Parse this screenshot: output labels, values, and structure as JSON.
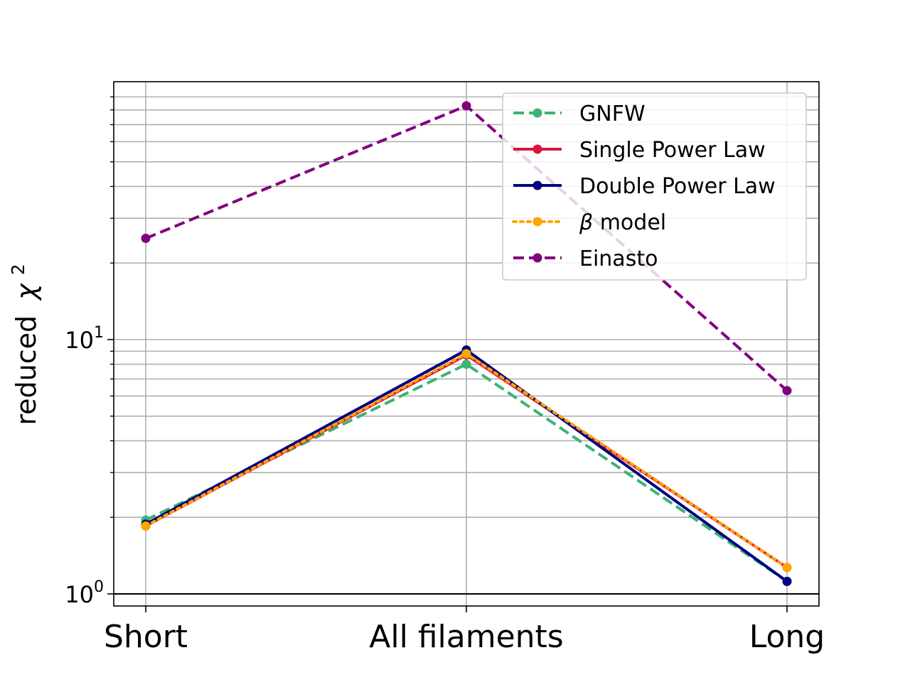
{
  "chart_data": {
    "type": "line",
    "yscale": "log",
    "ylim": [
      0.95,
      70
    ],
    "categories": [
      "Short",
      "All filaments",
      "Long"
    ],
    "ylabel_text": "reduced",
    "ylabel_symbol": "χ",
    "ylabel_exponent": "2",
    "y_major_ticks": [
      {
        "value": 1,
        "base": "10",
        "exp": "0"
      },
      {
        "value": 10,
        "base": "10",
        "exp": "1"
      }
    ],
    "grid": true,
    "reference_line": 1,
    "legend_position": "top-right",
    "series": [
      {
        "name": "GNFW",
        "color": "#3cb371",
        "style": "dashed",
        "values": [
          1.95,
          8.0,
          1.12
        ]
      },
      {
        "name": "Single Power Law",
        "color": "#dc143c",
        "style": "solid",
        "values": [
          1.85,
          8.7,
          1.27
        ]
      },
      {
        "name": "Double Power Law",
        "color": "#000080",
        "style": "solid",
        "values": [
          1.88,
          9.1,
          1.12
        ]
      },
      {
        "name": "β model",
        "name_symbol": "β",
        "name_rest": " model",
        "color": "#ffa500",
        "style": "dotted",
        "values": [
          1.85,
          8.8,
          1.27
        ]
      },
      {
        "name": "Einasto",
        "color": "#800080",
        "style": "dashed",
        "values": [
          25.0,
          83.0,
          6.3
        ]
      }
    ]
  }
}
